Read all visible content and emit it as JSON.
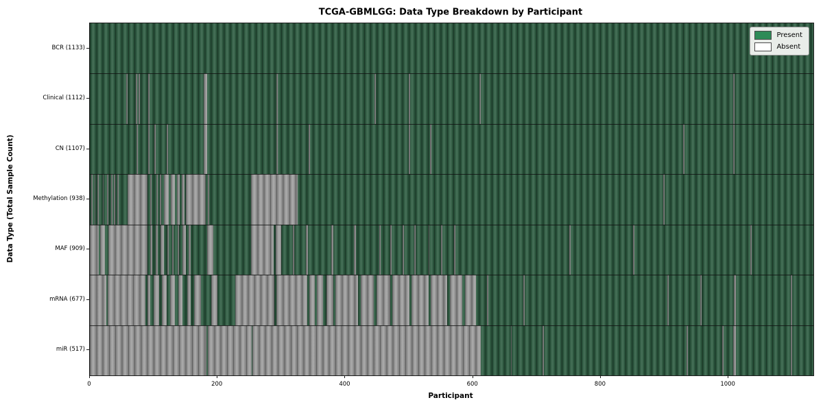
{
  "chart_data": {
    "type": "heatmap",
    "title": "TCGA-GBMLGG: Data Type Breakdown by Participant",
    "xlabel": "Participant",
    "ylabel": "Data Type (Total Sample Count)",
    "x_ticks": [
      0,
      200,
      400,
      600,
      800,
      1000
    ],
    "x_range": [
      0,
      1133
    ],
    "grid": false,
    "legend": {
      "position": "upper right",
      "entries": [
        {
          "label": "Present",
          "color": "#2e8b57"
        },
        {
          "label": "Absent",
          "color": "#ffffff"
        }
      ]
    },
    "colors": {
      "present": "#2e8b57",
      "absent": "#ffffff",
      "rendered_present_fill": "#2d5c41",
      "rendered_absent_fill": "#9d9d9d"
    },
    "rows": [
      {
        "label": "BCR (1133)",
        "data_type": "BCR",
        "total_samples": 1133,
        "absent_segments": []
      },
      {
        "label": "Clinical (1112)",
        "data_type": "Clinical",
        "total_samples": 1112,
        "absent_segments": [
          [
            57,
            59
          ],
          [
            72,
            74
          ],
          [
            76,
            78
          ],
          [
            91,
            93
          ],
          [
            178,
            184
          ],
          [
            292,
            294
          ],
          [
            446,
            448
          ],
          [
            499,
            501
          ],
          [
            610,
            612
          ],
          [
            1007,
            1009
          ]
        ]
      },
      {
        "label": "CN (1107)",
        "data_type": "CN",
        "total_samples": 1107,
        "absent_segments": [
          [
            73,
            75
          ],
          [
            91,
            93
          ],
          [
            101,
            103
          ],
          [
            120,
            122
          ],
          [
            178,
            184
          ],
          [
            292,
            294
          ],
          [
            343,
            345
          ],
          [
            499,
            501
          ],
          [
            533,
            535
          ],
          [
            929,
            931
          ],
          [
            1007,
            1009
          ]
        ]
      },
      {
        "label": "Methylation (938)",
        "data_type": "Methylation",
        "total_samples": 938,
        "absent_segments": [
          [
            2,
            4
          ],
          [
            7,
            9
          ],
          [
            12,
            14
          ],
          [
            20,
            22
          ],
          [
            27,
            29
          ],
          [
            33,
            35
          ],
          [
            38,
            40
          ],
          [
            43,
            45
          ],
          [
            59,
            90
          ],
          [
            95,
            97
          ],
          [
            104,
            106
          ],
          [
            110,
            112
          ],
          [
            116,
            124
          ],
          [
            127,
            133
          ],
          [
            136,
            141
          ],
          [
            144,
            148
          ],
          [
            150,
            181
          ],
          [
            185,
            187
          ],
          [
            252,
            325
          ],
          [
            898,
            900
          ]
        ]
      },
      {
        "label": "MAF (909)",
        "data_type": "MAF",
        "total_samples": 909,
        "absent_segments": [
          [
            0,
            14
          ],
          [
            16,
            24
          ],
          [
            29,
            90
          ],
          [
            95,
            98
          ],
          [
            103,
            106
          ],
          [
            111,
            116
          ],
          [
            121,
            124
          ],
          [
            129,
            131
          ],
          [
            137,
            140
          ],
          [
            145,
            150
          ],
          [
            155,
            158
          ],
          [
            184,
            193
          ],
          [
            252,
            288
          ],
          [
            291,
            300
          ],
          [
            318,
            320
          ],
          [
            338,
            342
          ],
          [
            378,
            381
          ],
          [
            413,
            417
          ],
          [
            453,
            455
          ],
          [
            470,
            472
          ],
          [
            490,
            492
          ],
          [
            508,
            510
          ],
          [
            530,
            532
          ],
          [
            550,
            552
          ],
          [
            570,
            572
          ],
          [
            751,
            753
          ],
          [
            851,
            853
          ],
          [
            1034,
            1036
          ]
        ]
      },
      {
        "label": "mRNA (677)",
        "data_type": "mRNA",
        "total_samples": 677,
        "absent_segments": [
          [
            0,
            26
          ],
          [
            28,
            87
          ],
          [
            90,
            95
          ],
          [
            100,
            108
          ],
          [
            113,
            120
          ],
          [
            126,
            133
          ],
          [
            139,
            145
          ],
          [
            152,
            158
          ],
          [
            163,
            174
          ],
          [
            190,
            200
          ],
          [
            228,
            289
          ],
          [
            292,
            340
          ],
          [
            344,
            352
          ],
          [
            356,
            365
          ],
          [
            370,
            381
          ],
          [
            385,
            420
          ],
          [
            424,
            445
          ],
          [
            449,
            470
          ],
          [
            474,
            500
          ],
          [
            504,
            530
          ],
          [
            534,
            560
          ],
          [
            564,
            583
          ],
          [
            587,
            605
          ],
          [
            622,
            624
          ],
          [
            679,
            681
          ],
          [
            904,
            906
          ],
          [
            956,
            958
          ],
          [
            1008,
            1012
          ],
          [
            1098,
            1100
          ]
        ]
      },
      {
        "label": "miR (517)",
        "data_type": "miR",
        "total_samples": 517,
        "absent_segments": [
          [
            0,
            183
          ],
          [
            185,
            253
          ],
          [
            255,
            612
          ],
          [
            659,
            661
          ],
          [
            709,
            711
          ],
          [
            934,
            936
          ],
          [
            990,
            992
          ],
          [
            1007,
            1012
          ],
          [
            1098,
            1100
          ]
        ]
      }
    ]
  }
}
